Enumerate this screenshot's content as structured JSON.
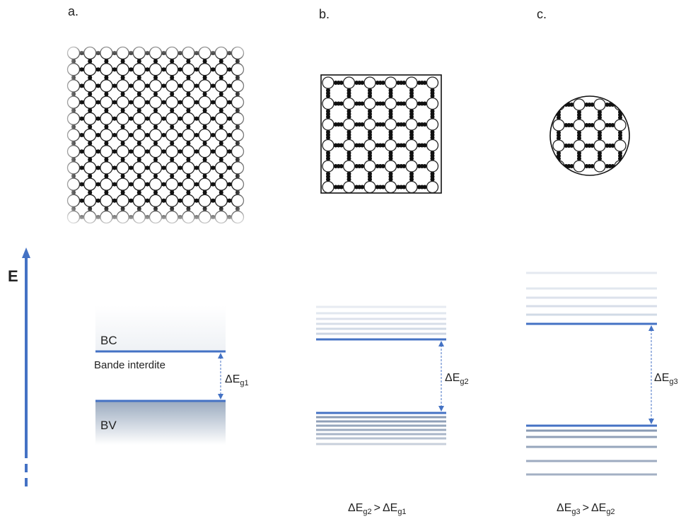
{
  "panels": {
    "a": "a.",
    "b": "b.",
    "c": "c."
  },
  "axis": {
    "label": "E"
  },
  "bands": {
    "bc": "BC",
    "bv": "BV",
    "gap_label": "Bande interdite"
  },
  "gaps": {
    "g1": {
      "main": "ΔE",
      "sub": "g1"
    },
    "g2": {
      "main": "ΔE",
      "sub": "g2"
    },
    "g3": {
      "main": "ΔE",
      "sub": "g3"
    }
  },
  "comparisons": {
    "b": {
      "left_main": "ΔE",
      "left_sub": "g2",
      "op": ">",
      "right_main": "ΔE",
      "right_sub": "g1"
    },
    "c": {
      "left_main": "ΔE",
      "left_sub": "g3",
      "op": ">",
      "right_main": "ΔE",
      "right_sub": "g2"
    }
  },
  "colors": {
    "accent": "#4472c4",
    "band_dark": "#8496b0",
    "band_light": "#c9d3e2",
    "atom_stroke": "#222222",
    "electron": "#111111"
  }
}
